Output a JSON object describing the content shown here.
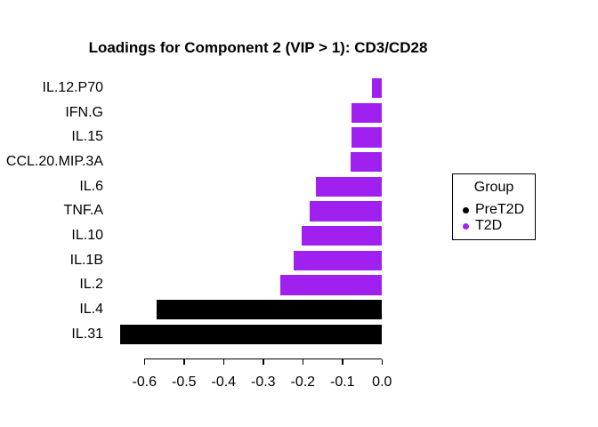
{
  "chart_data": {
    "type": "bar",
    "orientation": "horizontal",
    "title": "Loadings for Component 2 (VIP > 1): CD3/CD28",
    "categories": [
      "IL.12.P70",
      "IFN.G",
      "IL.15",
      "CCL.20.MIP.3A",
      "IL.6",
      "TNF.A",
      "IL.10",
      "IL.1B",
      "IL.2",
      "IL.4",
      "IL.31"
    ],
    "values": [
      -0.026,
      -0.076,
      -0.076,
      -0.08,
      -0.167,
      -0.183,
      -0.202,
      -0.223,
      -0.257,
      -0.57,
      -0.662
    ],
    "groups": [
      "T2D",
      "T2D",
      "T2D",
      "T2D",
      "T2D",
      "T2D",
      "T2D",
      "T2D",
      "T2D",
      "PreT2D",
      "PreT2D"
    ],
    "xlabel": "",
    "ylabel": "",
    "xlim": [
      -0.6,
      0.0
    ],
    "x_ticks": [
      -0.6,
      -0.5,
      -0.4,
      -0.3,
      -0.2,
      -0.1,
      0.0
    ],
    "x_tick_labels": [
      "-0.6",
      "-0.5",
      "-0.4",
      "-0.3",
      "-0.2",
      "-0.1",
      "0.0"
    ],
    "grid": false,
    "colors": {
      "PreT2D": "#000000",
      "T2D": "#A020F0"
    },
    "background": "#FFFFFF",
    "legend": {
      "title": "Group",
      "position": "right",
      "entries": [
        {
          "label": "PreT2D",
          "color": "#000000"
        },
        {
          "label": "T2D",
          "color": "#A020F0"
        }
      ]
    }
  }
}
